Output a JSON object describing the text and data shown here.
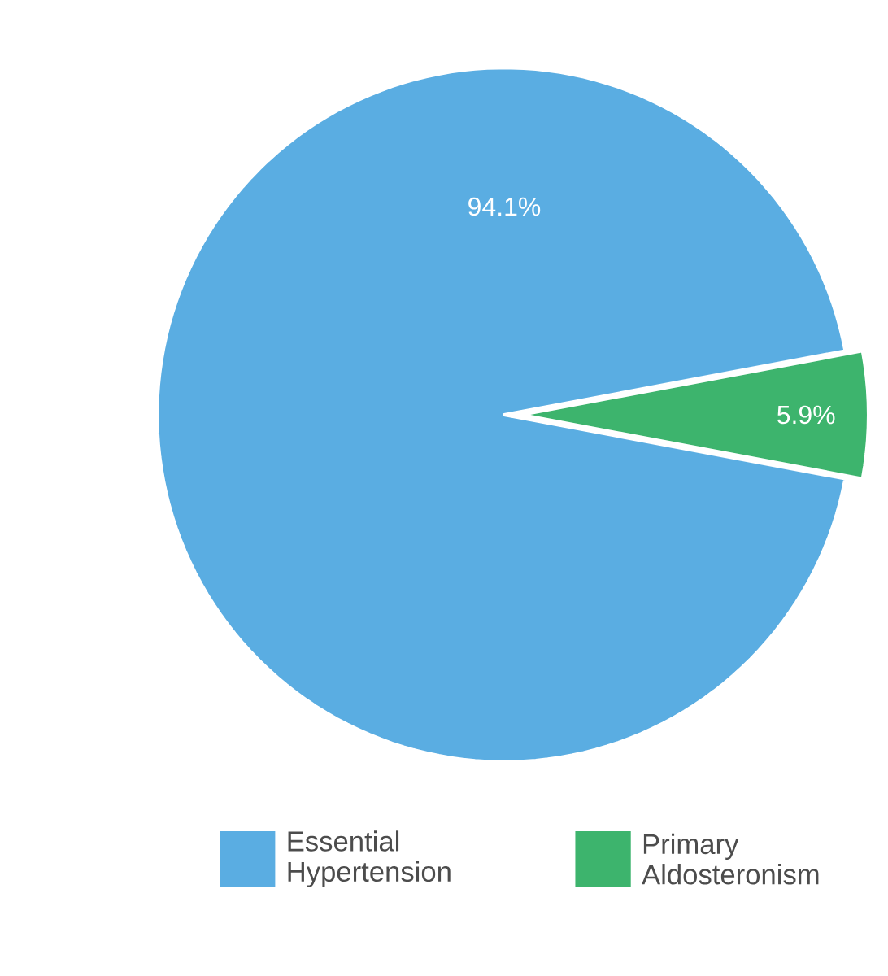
{
  "chart_data": {
    "type": "pie",
    "categories": [
      "Essential Hypertension",
      "Primary Aldosteronism"
    ],
    "values": [
      94.1,
      5.9
    ],
    "colors": [
      "#5aade2",
      "#3db46d"
    ],
    "value_labels": [
      "94.1%",
      "5.9%"
    ],
    "legend": "bottom"
  }
}
